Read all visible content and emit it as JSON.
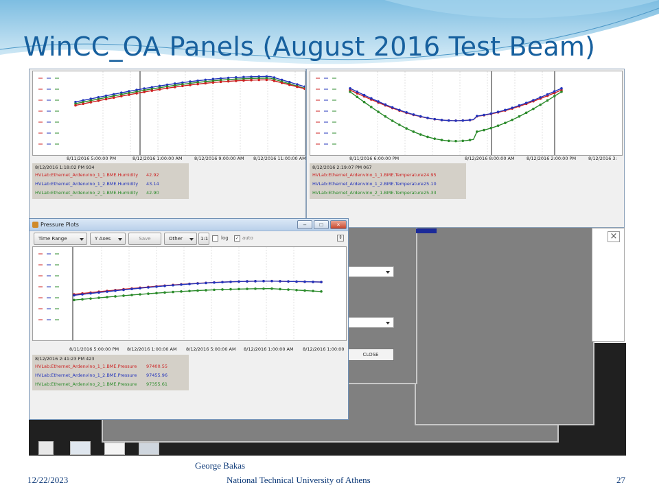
{
  "slide": {
    "title": "WinCC_OA Panels (August 2016 Test Beam)",
    "footer_date": "12/22/2023",
    "footer_author": "George Bakas",
    "footer_org": "National Technical University of Athens",
    "page_number": "27"
  },
  "humidity_panel": {
    "timestamp": "8/12/2016 1:18:02 PM 934",
    "ticks": [
      "8/11/2016 5:00:00 PM",
      "8/12/2016 1:00:00 AM",
      "8/12/2016 9:00:00 AM",
      "8/12/2016 11:00:00 AM"
    ],
    "rows": [
      {
        "name": "HVLab:Ethernet_Ardenvino_1_1.BME.Humidity",
        "value": "42.92",
        "color": "#cc2222"
      },
      {
        "name": "HVLab:Ethernet_Ardenvino_1_2.BME.Humidity",
        "value": "43.14",
        "color": "#2233bb"
      },
      {
        "name": "HVLab:Ethernet_Ardenvino_2_1.BME.Humidity",
        "value": "42.90",
        "color": "#2a8a2a"
      }
    ]
  },
  "temperature_panel": {
    "timestamp": "8/12/2016 2:19:07 PM 067",
    "ticks": [
      "8/11/2016 6:00:00 PM",
      "8/12/2016 8:00:00 AM",
      "8/12/2016 2:00:00 PM",
      "8/12/2016 3:"
    ],
    "rows": [
      {
        "name": "HVLab:Ethernet_Ardenvino_1_1.BME.Temperature",
        "value": "24.95",
        "color": "#cc2222"
      },
      {
        "name": "HVLab:Ethernet_Ardenvino_1_2.BME.Temperature",
        "value": "25.10",
        "color": "#2233bb"
      },
      {
        "name": "HVLab:Ethernet_Ardenvino_2_1.BME.Temperature",
        "value": "25.33",
        "color": "#2a8a2a"
      }
    ]
  },
  "pressure_window": {
    "title": "Pressure Plots",
    "toolbar": {
      "time_range": "Time Range",
      "y_axes": "Y Axes",
      "save": "Save",
      "other": "Other",
      "ratio": "1:1",
      "log": "log",
      "auto": "auto"
    },
    "timestamp": "8/12/2016 2:41:23 PM 423",
    "ticks": [
      "8/11/2016 5:00:00 PM",
      "8/12/2016 1:00:00 AM",
      "8/12/2016 5:00:00 AM",
      "8/12/2016 1:00:00 AM",
      "8/12/2016 1:00:00"
    ],
    "rows": [
      {
        "name": "HVLab:Ethernet_Ardenvino_1_1.BME.Pressure",
        "value": "97400.55",
        "color": "#cc2222"
      },
      {
        "name": "HVLab:Ethernet_Ardenvino_1_2.BME.Pressure",
        "value": "97455.96",
        "color": "#2233bb"
      },
      {
        "name": "HVLab:Ethernet_Ardenvino_2_1.BME.Pressure",
        "value": "97355.61",
        "color": "#2a8a2a"
      }
    ]
  },
  "dialog": {
    "close_label": "CLOSE"
  }
}
